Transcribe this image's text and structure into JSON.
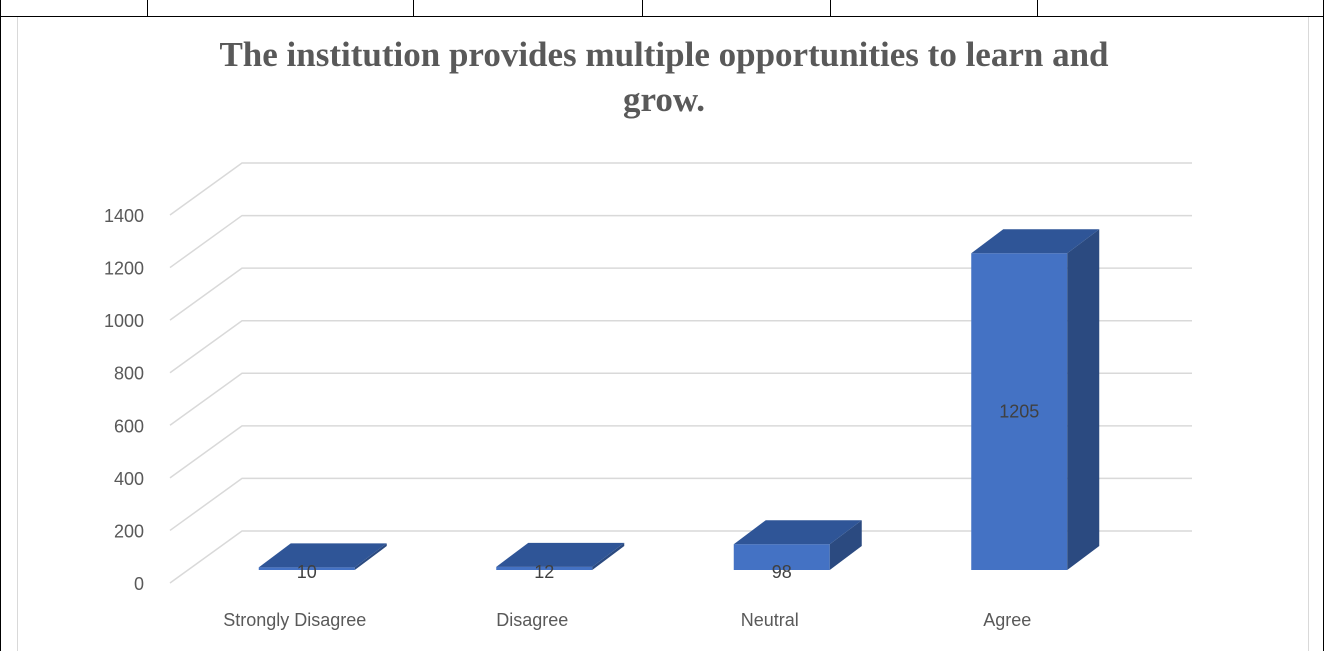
{
  "chart_data": {
    "type": "bar",
    "style": "3d-column",
    "title": "The institution provides multiple opportunities to learn and\ngrow.",
    "categories": [
      "Strongly Disagree",
      "Disagree",
      "Neutral",
      "Agree"
    ],
    "series": [
      {
        "values": [
          10,
          12,
          98,
          1205
        ],
        "color": "#4472c4"
      }
    ],
    "ylim": [
      0,
      1400
    ],
    "yticks": [
      0,
      200,
      400,
      600,
      800,
      1000,
      1200,
      1400
    ],
    "grid": true,
    "legend": "none",
    "data_labels": true
  }
}
